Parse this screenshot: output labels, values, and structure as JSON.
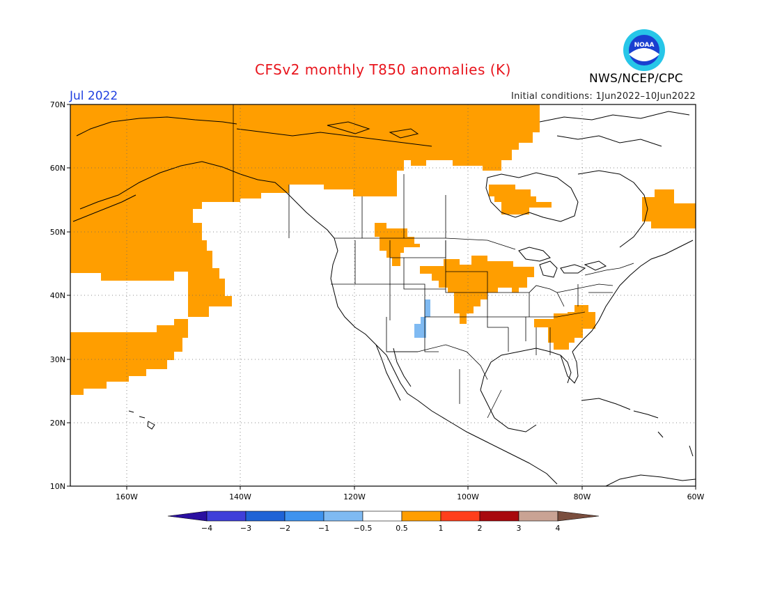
{
  "header": {
    "title": "CFSv2 monthly T850 anomalies (K)",
    "month": "Jul 2022",
    "initial_conditions": "Initial conditions: 1Jun2022–10Jun2022",
    "agency": "NWS/NCEP/CPC",
    "logo_text": "NOAA",
    "logo_icon": "noaa-logo-icon"
  },
  "map": {
    "lat_labels": [
      "70N",
      "60N",
      "50N",
      "40N",
      "30N",
      "20N",
      "10N"
    ],
    "lon_labels": [
      "160W",
      "140W",
      "120W",
      "100W",
      "80W",
      "60W"
    ],
    "lat_range": [
      10,
      70
    ],
    "lon_range": [
      -170,
      -60
    ],
    "grid": true
  },
  "legend": {
    "tick_labels": [
      "−4",
      "−3",
      "−2",
      "−1",
      "−0.5",
      "0.5",
      "1",
      "2",
      "3",
      "4"
    ],
    "colors": [
      "#2a0fa0",
      "#3f3fd9",
      "#1f63d6",
      "#3f93ee",
      "#7fbaf2",
      "#ffffff",
      "#ff9e00",
      "#ff3f1c",
      "#a8090e",
      "#c9a394",
      "#7a4e3e"
    ]
  },
  "colors": {
    "warm": "#ff9e00",
    "cool": "#7fbaf2",
    "title": "#e8141c",
    "month": "#1f3fe0"
  }
}
